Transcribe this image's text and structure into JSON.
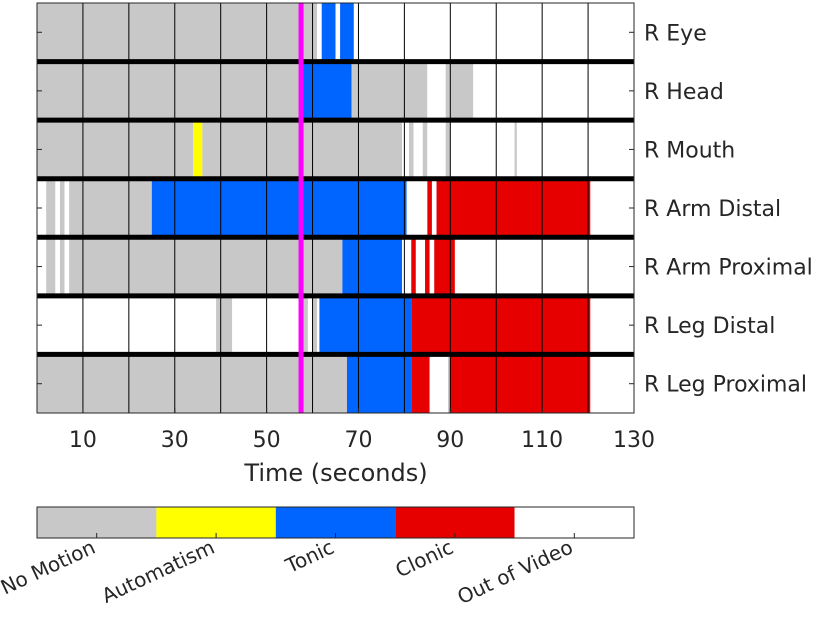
{
  "chart_data": {
    "type": "timeline",
    "xlabel": "Time (seconds)",
    "xlim": [
      0,
      130
    ],
    "xticks": [
      "10",
      "30",
      "50",
      "70",
      "90",
      "110",
      "130"
    ],
    "xtick_values": [
      10,
      30,
      50,
      70,
      90,
      110,
      130
    ],
    "grid_lines": [
      10,
      20,
      30,
      40,
      50,
      60,
      70,
      80,
      90,
      100,
      110,
      120,
      130
    ],
    "marker_time": 57.5,
    "colors": {
      "none": "#c8c8c8",
      "auto": "#ffff00",
      "tonic": "#0064ff",
      "clonic": "#e60000",
      "out": "#ffffff",
      "marker": "#ff00ff",
      "separator": "#000000"
    },
    "legend": [
      {
        "key": "none",
        "label": "No Motion"
      },
      {
        "key": "auto",
        "label": "Automatism"
      },
      {
        "key": "tonic",
        "label": "Tonic"
      },
      {
        "key": "clonic",
        "label": "Clonic"
      },
      {
        "key": "out",
        "label": "Out of Video"
      }
    ],
    "rows": [
      {
        "label": "R Eye",
        "segments": [
          [
            0,
            61,
            "none"
          ],
          [
            61,
            62,
            "out"
          ],
          [
            62,
            65,
            "tonic"
          ],
          [
            65,
            66,
            "out"
          ],
          [
            66,
            69,
            "tonic"
          ],
          [
            69,
            70,
            "out"
          ],
          [
            70,
            130,
            "out"
          ]
        ]
      },
      {
        "label": "R Head",
        "segments": [
          [
            0,
            57.5,
            "none"
          ],
          [
            57.5,
            68.5,
            "tonic"
          ],
          [
            68.5,
            85,
            "none"
          ],
          [
            85,
            89,
            "out"
          ],
          [
            89,
            95,
            "none"
          ],
          [
            95,
            130,
            "out"
          ]
        ]
      },
      {
        "label": "R Mouth",
        "segments": [
          [
            0,
            34,
            "none"
          ],
          [
            34,
            36,
            "auto"
          ],
          [
            36,
            79.5,
            "none"
          ],
          [
            79.5,
            81,
            "out"
          ],
          [
            81,
            82,
            "none"
          ],
          [
            82,
            84,
            "out"
          ],
          [
            84,
            85,
            "none"
          ],
          [
            85,
            89,
            "out"
          ],
          [
            89,
            90,
            "none"
          ],
          [
            90,
            104,
            "out"
          ],
          [
            104,
            104.5,
            "none"
          ],
          [
            104.5,
            130,
            "out"
          ]
        ]
      },
      {
        "label": "R Arm Distal",
        "segments": [
          [
            0,
            2,
            "out"
          ],
          [
            2,
            4,
            "none"
          ],
          [
            4,
            5,
            "out"
          ],
          [
            5,
            6,
            "none"
          ],
          [
            6,
            7,
            "out"
          ],
          [
            7,
            25,
            "none"
          ],
          [
            25,
            80.5,
            "tonic"
          ],
          [
            80.5,
            85,
            "out"
          ],
          [
            85,
            86,
            "clonic"
          ],
          [
            86,
            87,
            "out"
          ],
          [
            87,
            120.5,
            "clonic"
          ],
          [
            120.5,
            130,
            "out"
          ]
        ]
      },
      {
        "label": "R Arm Proximal",
        "segments": [
          [
            0,
            2,
            "out"
          ],
          [
            2,
            4,
            "none"
          ],
          [
            4,
            5,
            "out"
          ],
          [
            5,
            6,
            "none"
          ],
          [
            6,
            7,
            "out"
          ],
          [
            7,
            66.5,
            "none"
          ],
          [
            66.5,
            79.5,
            "tonic"
          ],
          [
            79.5,
            81.5,
            "out"
          ],
          [
            81.5,
            82.5,
            "clonic"
          ],
          [
            82.5,
            84.5,
            "out"
          ],
          [
            84.5,
            85.5,
            "clonic"
          ],
          [
            85.5,
            86.5,
            "out"
          ],
          [
            86.5,
            91,
            "clonic"
          ],
          [
            91,
            130,
            "out"
          ]
        ]
      },
      {
        "label": "R Leg Distal",
        "segments": [
          [
            0,
            39,
            "out"
          ],
          [
            39,
            42.5,
            "none"
          ],
          [
            42.5,
            57,
            "out"
          ],
          [
            57,
            59,
            "none"
          ],
          [
            59,
            60,
            "out"
          ],
          [
            60,
            61,
            "none"
          ],
          [
            61,
            61.5,
            "out"
          ],
          [
            61.5,
            81.5,
            "tonic"
          ],
          [
            81.5,
            120.5,
            "clonic"
          ],
          [
            120.5,
            130,
            "out"
          ]
        ]
      },
      {
        "label": "R Leg Proximal",
        "segments": [
          [
            0,
            67.5,
            "none"
          ],
          [
            67.5,
            81.5,
            "tonic"
          ],
          [
            81.5,
            85.5,
            "clonic"
          ],
          [
            85.5,
            89.5,
            "out"
          ],
          [
            89.5,
            90,
            "none"
          ],
          [
            90,
            120.5,
            "clonic"
          ],
          [
            120.5,
            130,
            "out"
          ]
        ]
      }
    ]
  }
}
